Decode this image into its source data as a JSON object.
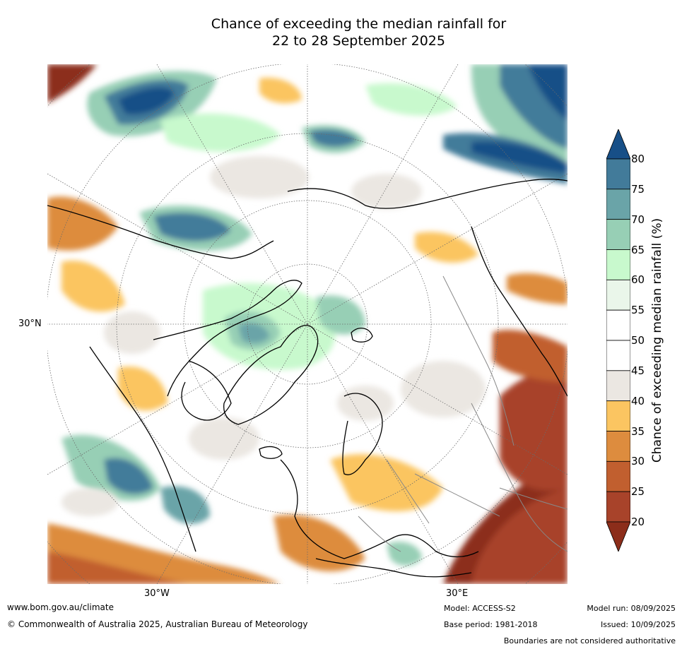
{
  "title": {
    "line1": "Chance of exceeding the median rainfall for",
    "line2": "22 to 28 September 2025"
  },
  "map": {
    "projection": "north polar stereographic",
    "lat_label": "30°N",
    "lon_labels": {
      "west": "30°W",
      "east": "30°E"
    },
    "legend": {
      "title": "Chance of exceeding median rainfall (%)",
      "ticks": [
        "20",
        "25",
        "30",
        "35",
        "40",
        "45",
        "50",
        "55",
        "60",
        "65",
        "70",
        "75",
        "80"
      ],
      "bins": [
        {
          "range": "<20",
          "color": "#8c2d1a"
        },
        {
          "range": "20-25",
          "color": "#a8432a"
        },
        {
          "range": "25-30",
          "color": "#c15f2f"
        },
        {
          "range": "30-35",
          "color": "#dd8c3e"
        },
        {
          "range": "35-40",
          "color": "#fbc561"
        },
        {
          "range": "40-45",
          "color": "#ebe7e2"
        },
        {
          "range": "45-50",
          "color": "#ffffff"
        },
        {
          "range": "50-55",
          "color": "#ffffff"
        },
        {
          "range": "55-60",
          "color": "#eaf6ea"
        },
        {
          "range": "60-65",
          "color": "#c8f9cd"
        },
        {
          "range": "65-70",
          "color": "#97cfb5"
        },
        {
          "range": "70-75",
          "color": "#6aa4a8"
        },
        {
          "range": "75-80",
          "color": "#427b9a"
        },
        {
          "range": ">80",
          "color": "#174f87"
        }
      ]
    }
  },
  "footer": {
    "website": "www.bom.gov.au/climate",
    "copyright": "© Commonwealth of Australia 2025, Australian Bureau of Meteorology",
    "model": "Model: ACCESS-S2",
    "base_period": "Base period: 1981-2018",
    "model_run": "Model run: 08/09/2025",
    "issued": "Issued: 10/09/2025",
    "disclaimer": "Boundaries are not considered authoritative"
  }
}
